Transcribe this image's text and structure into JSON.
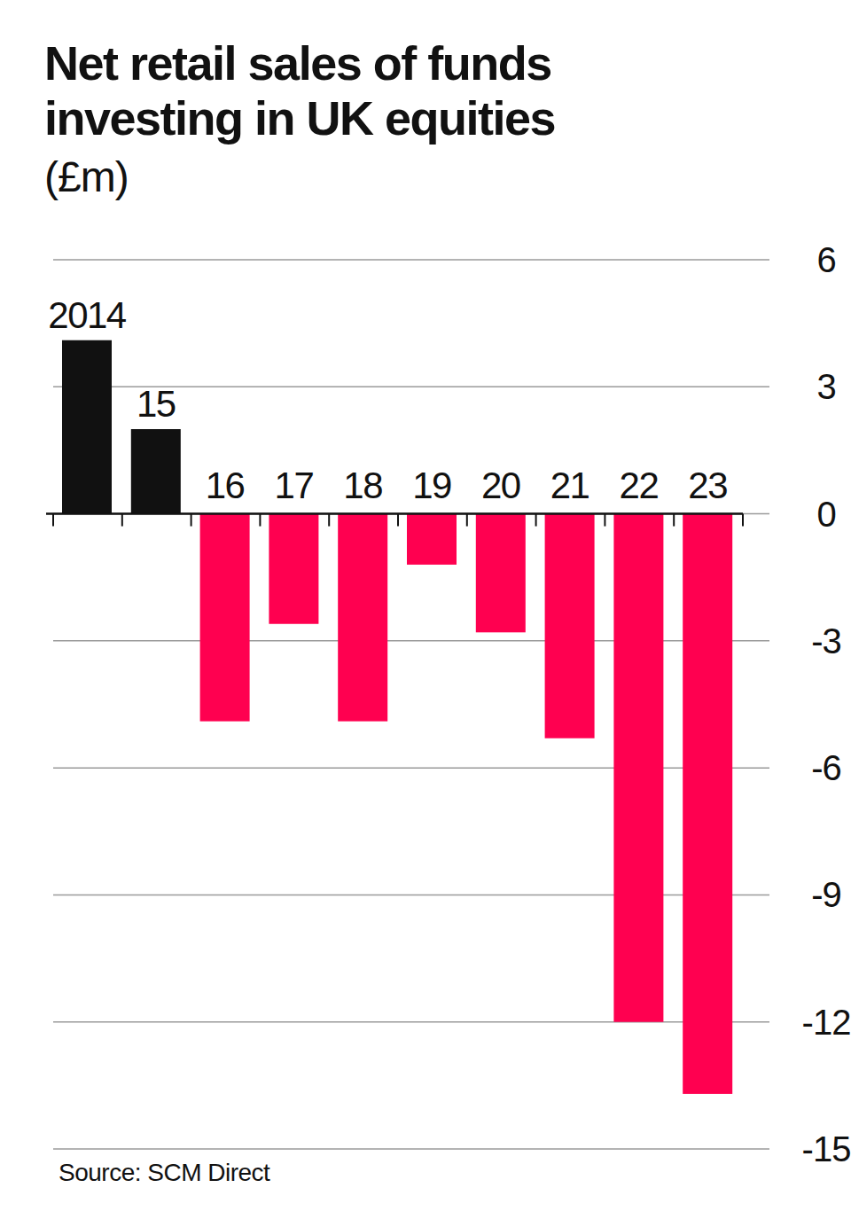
{
  "chart_data": {
    "type": "bar",
    "title": "Net retail sales of funds investing in UK equities",
    "subtitle": "(£m)",
    "source": "Source: SCM Direct",
    "categories": [
      "2014",
      "15",
      "16",
      "17",
      "18",
      "19",
      "20",
      "21",
      "22",
      "23"
    ],
    "values": [
      4.1,
      2.0,
      -4.9,
      -2.6,
      -4.9,
      -1.2,
      -2.8,
      -5.3,
      -12.0,
      -13.7
    ],
    "colors": [
      "#111111",
      "#111111",
      "#ff0050",
      "#ff0050",
      "#ff0050",
      "#ff0050",
      "#ff0050",
      "#ff0050",
      "#ff0050",
      "#ff0050"
    ],
    "ylim": [
      -15,
      6
    ],
    "yticks": [
      -15,
      -12,
      -9,
      -6,
      -3,
      0,
      3,
      6
    ],
    "grid": true
  }
}
